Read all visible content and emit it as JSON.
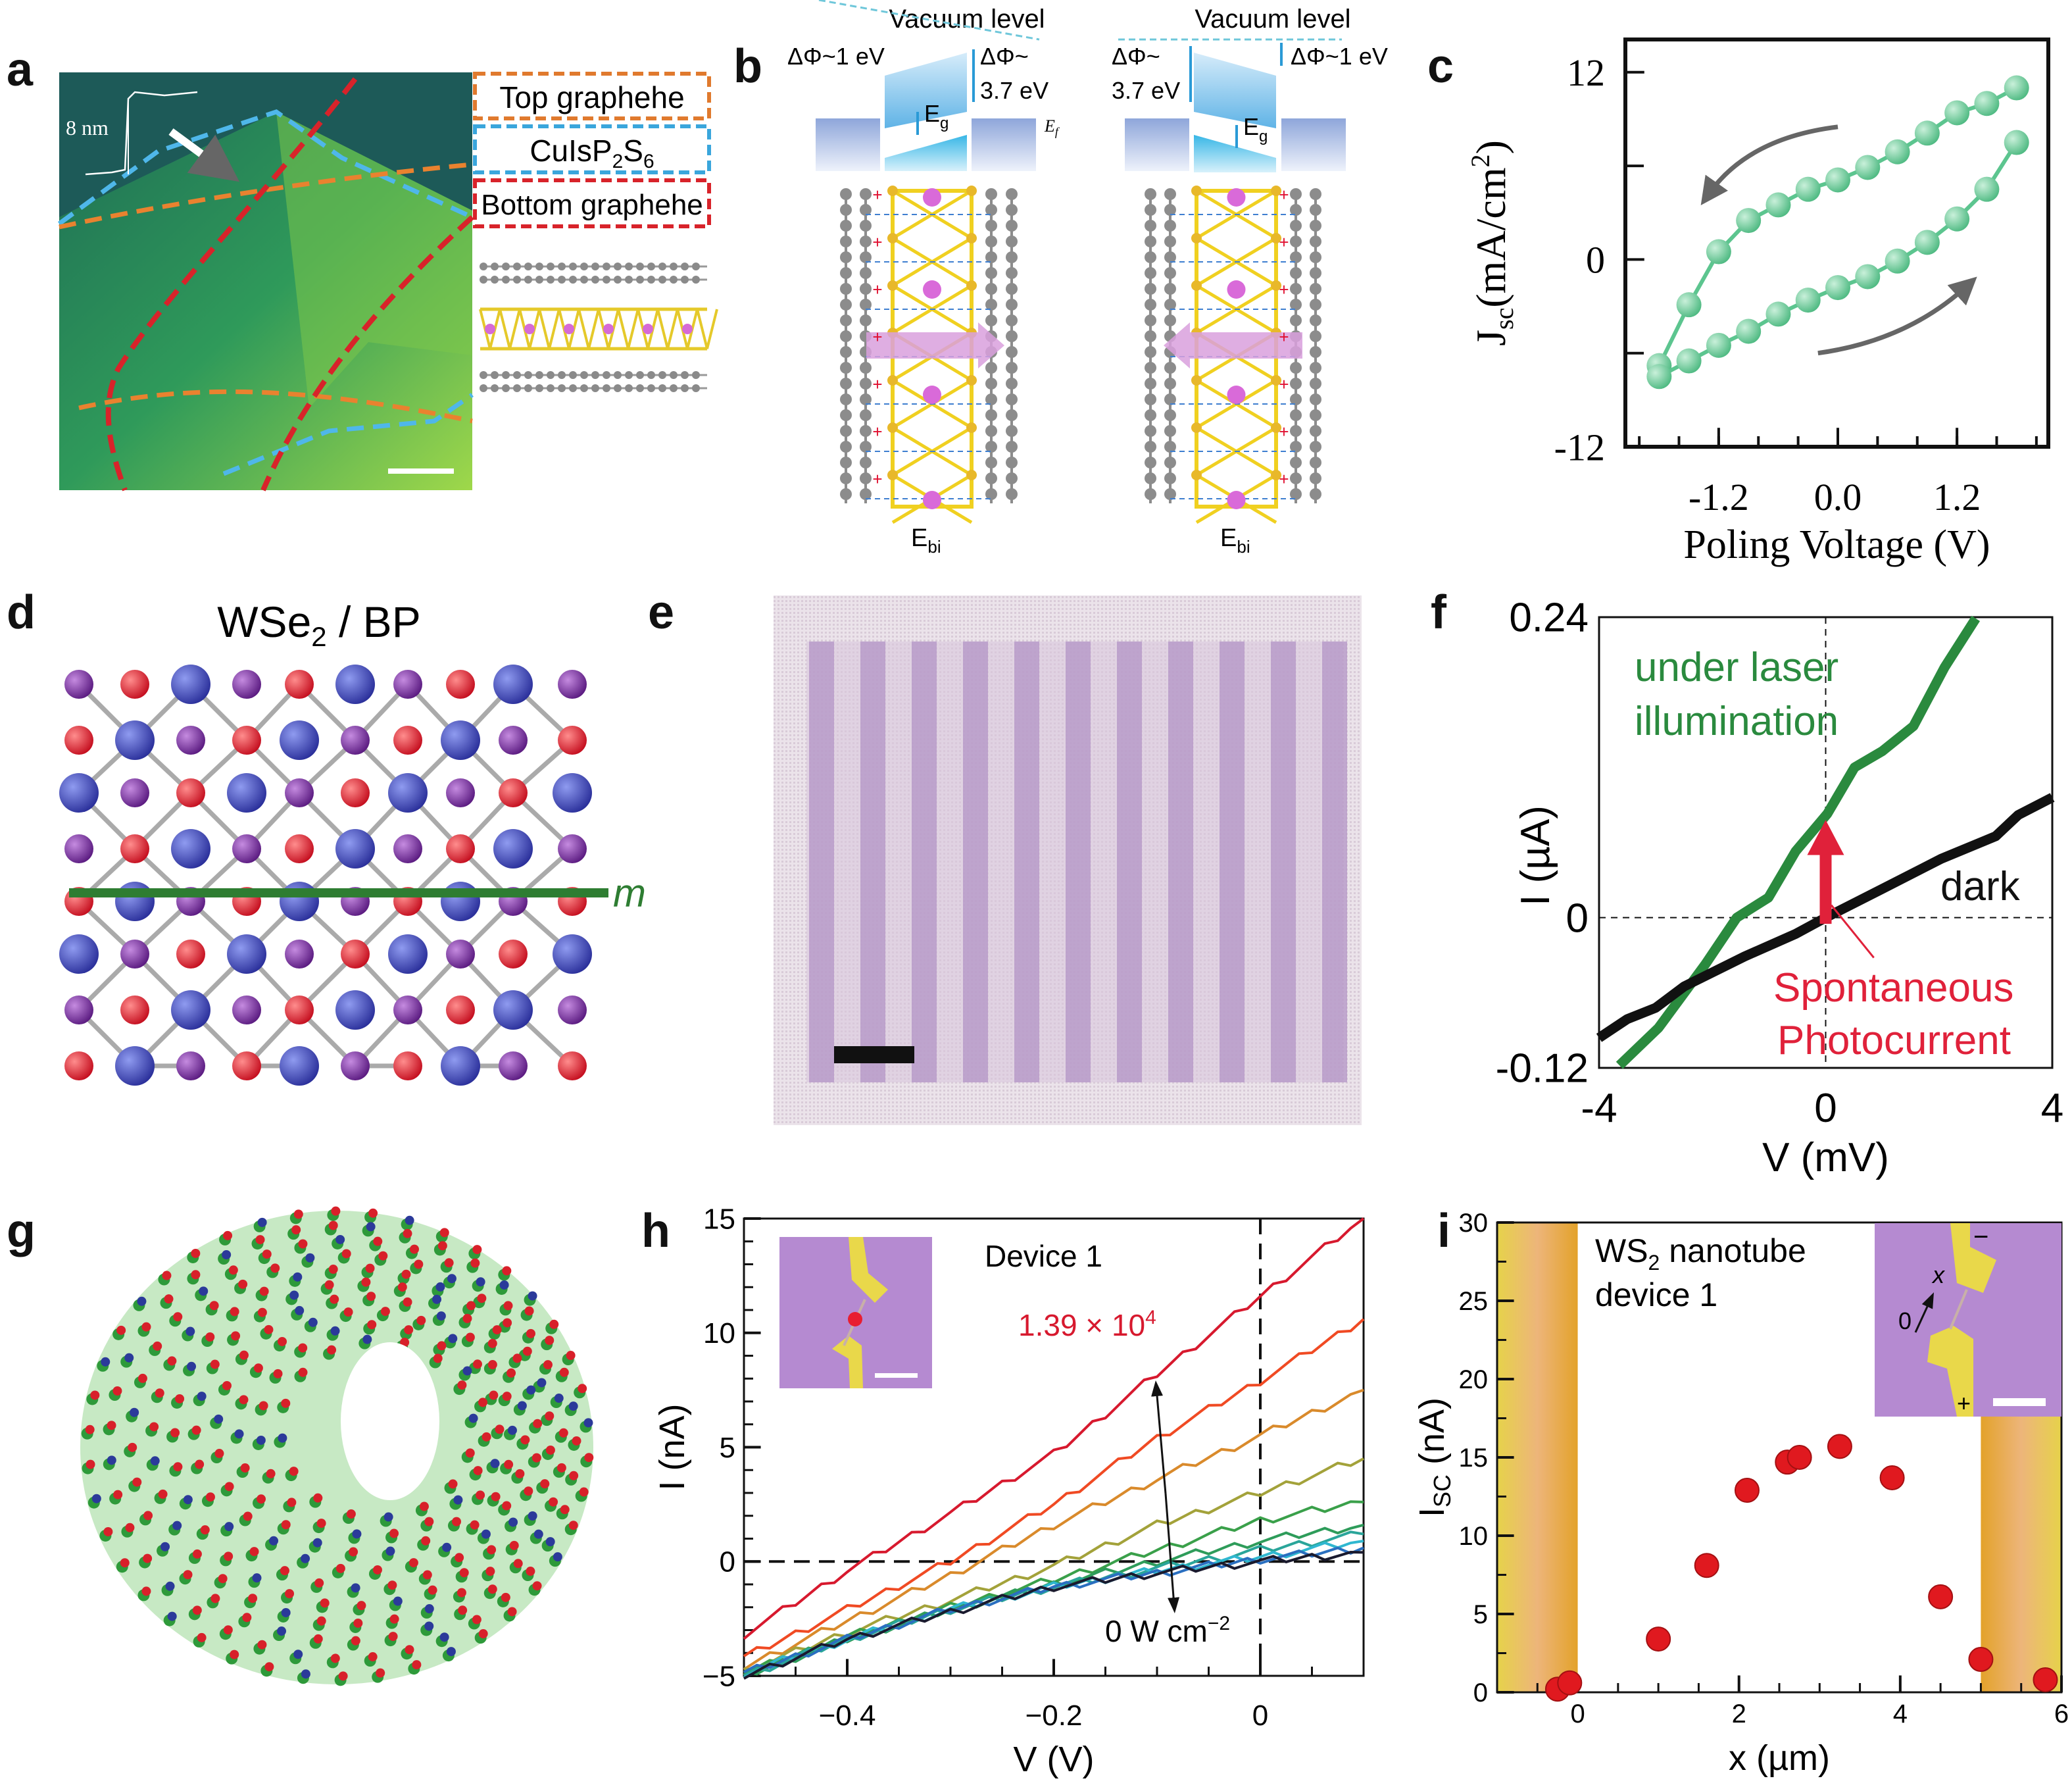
{
  "panel_labels": [
    "a",
    "b",
    "c",
    "d",
    "e",
    "f",
    "g",
    "h",
    "i"
  ],
  "panel_a": {
    "height_label": "8 nm",
    "legend": [
      {
        "text": "Top graphehe",
        "color": "#e07a2e"
      },
      {
        "text": "CuIsP",
        "sub1": "2",
        "mid": "S",
        "sub2": "6",
        "color": "#3aa6dc"
      },
      {
        "text": "Bottom graphehe",
        "color": "#d8232a"
      }
    ]
  },
  "panel_b": {
    "vacuum_level": "Vacuum level",
    "left": {
      "dphi_small": "ΔΦ~1 eV",
      "dphi_big_1": "ΔΦ~",
      "dphi_big_2": "3.7 eV",
      "eg": "E",
      "eg_sub": "g",
      "ef": "E",
      "ef_sub": "f",
      "ebi": "E",
      "ebi_sub": "bi"
    },
    "right": {
      "dphi_small": "ΔΦ~1 eV",
      "dphi_big_1": "ΔΦ~",
      "dphi_big_2": "3.7 eV",
      "eg": "E",
      "eg_sub": "g",
      "ebi": "E",
      "ebi_sub": "bi"
    }
  },
  "panel_d": {
    "title_1": "WSe",
    "title_sub": "2",
    "title_2": " / BP",
    "mirror_label": "m",
    "mirror_color": "#2e7d32"
  },
  "panel_g": {},
  "colors": {
    "green_marker": "#5cc58f",
    "laser_green": "#2a8a3e",
    "red_annot": "#e0213a",
    "purple_substrate": "#b58ad1",
    "gold_contact": "#e9c83a"
  },
  "chart_data": [
    {
      "id": "c",
      "type": "line",
      "xlabel": "Poling Voltage (V)",
      "ylabel": {
        "main": "J",
        "sub": "sc",
        "unit": "(mA/cm",
        "sup": "2",
        "close": ")"
      },
      "xlim": [
        -2.14,
        2.12
      ],
      "ylim": [
        -12,
        14.1
      ],
      "xticks": [
        -1.2,
        0.0,
        1.2
      ],
      "xtick_labels": [
        "-1.2",
        "0.0",
        "1.2"
      ],
      "yticks": [
        12,
        0,
        -12
      ],
      "ytick_labels": [
        "12",
        "0",
        "-12"
      ],
      "grid": false,
      "color": "#5cc58f",
      "series": [
        {
          "direction": "decreasing",
          "x": [
            1.8,
            1.5,
            1.2,
            0.9,
            0.6,
            0.3,
            0.0,
            -0.3,
            -0.6,
            -0.9,
            -1.2,
            -1.5,
            -1.8
          ],
          "y": [
            11.0,
            10.0,
            9.4,
            8.1,
            6.9,
            5.9,
            5.1,
            4.5,
            3.5,
            2.5,
            0.5,
            -2.9,
            -6.8
          ]
        },
        {
          "direction": "increasing",
          "x": [
            -1.8,
            -1.5,
            -1.2,
            -0.9,
            -0.6,
            -0.3,
            0.0,
            0.3,
            0.6,
            0.9,
            1.2,
            1.5,
            1.8
          ],
          "y": [
            -7.5,
            -6.5,
            -5.5,
            -4.6,
            -3.5,
            -2.6,
            -1.8,
            -1.1,
            -0.1,
            1.1,
            2.6,
            4.5,
            7.5
          ]
        }
      ]
    },
    {
      "id": "f",
      "type": "line",
      "xlabel": "V (mV)",
      "ylabel": "I (µA)",
      "xlim": [
        -4,
        4
      ],
      "ylim": [
        -0.12,
        0.24
      ],
      "xticks": [
        -4,
        0,
        4
      ],
      "xtick_labels": [
        "-4",
        "0",
        "4"
      ],
      "yticks": [
        0.24,
        0,
        -0.12
      ],
      "ytick_labels": [
        "0.24",
        "0",
        "-0.12"
      ],
      "grid": false,
      "series": [
        {
          "name": "under laser illumination",
          "label_2": "",
          "color": "#2a8a3e",
          "x": [
            -3.64,
            -2.95,
            -2.12,
            -1.57,
            -1.01,
            -0.53,
            0.03,
            0.51,
            1.0,
            1.55,
            2.1,
            2.65
          ],
          "y": [
            -0.118,
            -0.088,
            -0.037,
            0.0,
            0.016,
            0.053,
            0.083,
            0.12,
            0.133,
            0.153,
            0.2,
            0.239
          ]
        },
        {
          "name": "dark",
          "color": "#111111",
          "x": [
            -4,
            -3.5,
            -3.0,
            -2.5,
            -1.43,
            -0.53,
            0,
            1,
            2.04,
            3,
            3.4,
            4
          ],
          "y": [
            -0.096,
            -0.081,
            -0.072,
            -0.055,
            -0.031,
            -0.013,
            0,
            0.023,
            0.047,
            0.065,
            0.082,
            0.096
          ]
        }
      ],
      "annotations": {
        "laser_1": "under laser",
        "laser_2": "illumination",
        "dark": "dark",
        "spont_1": "Spontaneous",
        "spont_2": "Photocurrent"
      }
    },
    {
      "id": "h",
      "type": "line",
      "xlabel": "V (V)",
      "ylabel": "I (nA)",
      "xlim": [
        -0.5,
        0.1
      ],
      "ylim": [
        -5,
        15
      ],
      "xticks": [
        -0.4,
        -0.2,
        0
      ],
      "xtick_labels": [
        "−0.4",
        "−0.2",
        "0"
      ],
      "yticks": [
        15,
        10,
        5,
        0,
        -5
      ],
      "ytick_labels": [
        "15",
        "10",
        "5",
        "0",
        "−5"
      ],
      "grid": false,
      "x": [
        -0.5,
        -0.4,
        -0.3,
        -0.2,
        -0.1,
        0,
        0.1
      ],
      "series": [
        {
          "color": "#d7192e",
          "values": [
            -3.2,
            -0.4,
            2.1,
            4.7,
            8.2,
            11.6,
            15.0
          ]
        },
        {
          "color": "#f04a23",
          "values": [
            -4.2,
            -2.1,
            0.0,
            2.5,
            5.4,
            7.9,
            10.6
          ]
        },
        {
          "color": "#d98a2b",
          "values": [
            -4.6,
            -2.6,
            -0.6,
            1.6,
            3.6,
            5.5,
            7.5
          ]
        },
        {
          "color": "#a3a23a",
          "values": [
            -4.8,
            -3.1,
            -1.7,
            -0.2,
            1.6,
            3.0,
            4.5
          ]
        },
        {
          "color": "#3aa04a",
          "values": [
            -4.9,
            -3.3,
            -2.0,
            -0.8,
            0.5,
            1.8,
            2.6
          ]
        },
        {
          "color": "#2e9c5a",
          "values": [
            -5.0,
            -3.4,
            -2.1,
            -1.0,
            0.0,
            0.9,
            1.6
          ]
        },
        {
          "color": "#2aa59a",
          "values": [
            -5.0,
            -3.4,
            -2.1,
            -1.1,
            -0.3,
            0.5,
            1.2
          ]
        },
        {
          "color": "#2fb7d0",
          "values": [
            -4.9,
            -3.4,
            -2.1,
            -1.1,
            -0.4,
            0.2,
            0.9
          ]
        },
        {
          "color": "#2a6fc0",
          "values": [
            -4.9,
            -3.4,
            -2.1,
            -1.1,
            -0.5,
            0.1,
            0.6
          ]
        },
        {
          "color": "#1a1a2e",
          "values": [
            -5.0,
            -3.4,
            -2.2,
            -1.1,
            -0.5,
            0.0,
            0.4
          ]
        }
      ],
      "annotations": {
        "device": "Device 1",
        "max_power": "1.39 × 10",
        "max_power_sup": "4",
        "min_power": "0 W cm",
        "min_power_sup": "−2"
      }
    },
    {
      "id": "i",
      "type": "scatter",
      "xlabel": "x (µm)",
      "ylabel": {
        "main": "I",
        "sub": "SC",
        "unit": " (nA)"
      },
      "xlim": [
        -1,
        6
      ],
      "ylim": [
        0,
        30
      ],
      "xticks": [
        0,
        2,
        4,
        6
      ],
      "xtick_labels": [
        "0",
        "2",
        "4",
        "6"
      ],
      "yticks": [
        0,
        5,
        10,
        15,
        20,
        25,
        30
      ],
      "ytick_labels": [
        "0",
        "5",
        "10",
        "15",
        "20",
        "25",
        "30"
      ],
      "grid": false,
      "color": "#e0191f",
      "x": [
        -0.25,
        -0.1,
        1.0,
        1.6,
        2.1,
        2.6,
        2.75,
        3.25,
        3.9,
        4.5,
        5.0,
        5.8
      ],
      "y": [
        0.2,
        0.6,
        3.4,
        8.1,
        12.9,
        14.7,
        15.0,
        15.7,
        13.7,
        6.1,
        2.1,
        0.8
      ],
      "contact_regions": [
        [
          -1,
          0
        ],
        [
          5,
          6
        ]
      ],
      "annotations": {
        "title_1": "WS",
        "title_sub": "2",
        "title_2": " nanotube",
        "title_3": "device 1",
        "inset_minus": "−",
        "inset_plus": "+",
        "inset_x": "x",
        "inset_zero": "0"
      }
    }
  ]
}
